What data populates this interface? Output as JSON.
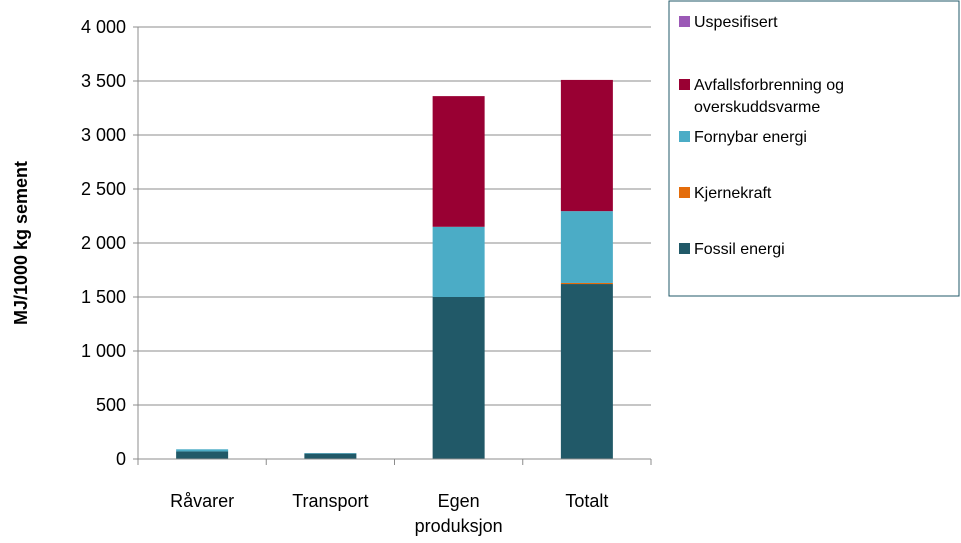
{
  "chart_data": {
    "type": "bar",
    "stacked": true,
    "categories": [
      "Råvarer",
      "Transport",
      "Egen produksjon",
      "Totalt"
    ],
    "category_lines": [
      [
        "Råvarer"
      ],
      [
        "Transport"
      ],
      [
        "Egen",
        "produksjon"
      ],
      [
        "Totalt"
      ]
    ],
    "ylabel": "MJ/1000 kg sement",
    "xlabel": "",
    "ylim": [
      0,
      4000
    ],
    "yticks": [
      0,
      500,
      1000,
      1500,
      2000,
      2500,
      3000,
      3500,
      4000
    ],
    "ytick_labels": [
      "0",
      "500",
      "1 000",
      "1 500",
      "2 000",
      "2 500",
      "3 000",
      "3 500",
      "4 000"
    ],
    "grid": true,
    "legend_position": "right",
    "series": [
      {
        "name": "Fossil energi",
        "color": "#215968",
        "values": [
          70,
          50,
          1500,
          1620
        ]
      },
      {
        "name": "Kjernekraft",
        "color": "#E46C0A",
        "values": [
          0,
          0,
          0,
          10
        ]
      },
      {
        "name": "Fornybar energi",
        "color": "#4BACC6",
        "values": [
          20,
          5,
          650,
          665
        ]
      },
      {
        "name": "Avfallsforbrenning og overskuddsvarme",
        "color": "#990033",
        "values": [
          0,
          0,
          1210,
          1215
        ]
      },
      {
        "name": "Uspesifisert",
        "color": "#9B59B6",
        "values": [
          0,
          0,
          0,
          0
        ]
      }
    ],
    "legend_order": [
      {
        "lines": [
          "Uspesifisert"
        ],
        "color": "#9B59B6"
      },
      {
        "lines": [
          "Avfallsforbrenning og",
          "overskuddsvarme"
        ],
        "color": "#990033"
      },
      {
        "lines": [
          "Fornybar energi"
        ],
        "color": "#4BACC6"
      },
      {
        "lines": [
          "Kjernekraft"
        ],
        "color": "#E46C0A"
      },
      {
        "lines": [
          "Fossil energi"
        ],
        "color": "#215968"
      }
    ]
  }
}
